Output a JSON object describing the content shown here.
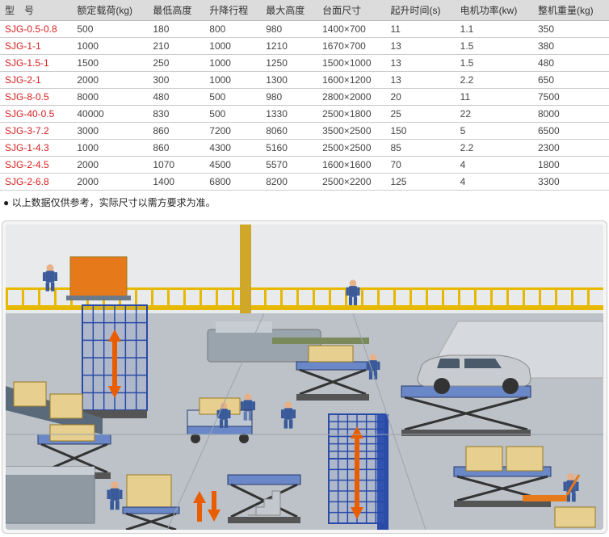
{
  "table": {
    "header_bg": "#dcdcdc",
    "row_border": "#cccccc",
    "model_color": "#d62020",
    "text_color": "#444444",
    "columns": [
      "型　号",
      "额定载荷(kg)",
      "最低高度",
      "升降行程",
      "最大高度",
      "台面尺寸",
      "起升时间(s)",
      "电机功率(kw)",
      "整机重量(kg)"
    ],
    "rows": [
      [
        "SJG-0.5-0.8",
        "500",
        "180",
        "800",
        "980",
        "1400×700",
        "11",
        "1.1",
        "350"
      ],
      [
        "SJG-1-1",
        "1000",
        "210",
        "1000",
        "1210",
        "1670×700",
        "13",
        "1.5",
        "380"
      ],
      [
        "SJG-1.5-1",
        "1500",
        "250",
        "1000",
        "1250",
        "1500×1000",
        "13",
        "1.5",
        "480"
      ],
      [
        "SJG-2-1",
        "2000",
        "300",
        "1000",
        "1300",
        "1600×1200",
        "13",
        "2.2",
        "650"
      ],
      [
        "SJG-8-0.5",
        "8000",
        "480",
        "500",
        "980",
        "2800×2000",
        "20",
        "11",
        "7500"
      ],
      [
        "SJG-40-0.5",
        "40000",
        "830",
        "500",
        "1330",
        "2500×1800",
        "25",
        "22",
        "8000"
      ],
      [
        "SJG-3-7.2",
        "3000",
        "860",
        "7200",
        "8060",
        "3500×2500",
        "150",
        "5",
        "6500"
      ],
      [
        "SJG-1-4.3",
        "1000",
        "860",
        "4300",
        "5160",
        "2500×2500",
        "85",
        "2.2",
        "2300"
      ],
      [
        "SJG-2-4.5",
        "2000",
        "1070",
        "4500",
        "5570",
        "1600×1600",
        "70",
        "4",
        "1800"
      ],
      [
        "SJG-2-6.8",
        "2000",
        "1400",
        "6800",
        "8200",
        "2500×2200",
        "125",
        "4",
        "3300"
      ]
    ]
  },
  "footnote": "● 以上数据仅供参考，实际尺寸以需方要求为准。",
  "illus": {
    "bg_upper": "#e8eaec",
    "bg_floor": "#bcc2c8",
    "rail_color": "#e6b800",
    "cage_blue": "#2a4aa8",
    "cage_fill": "#5b7fd6",
    "box_orange": "#e67a1a",
    "box_tan": "#e6cf8f",
    "lift_top": "#6a88c8",
    "scissor": "#333333",
    "arrow": "#e85d00",
    "worker_body": "#3a5a9a",
    "worker_skin": "#e8b088",
    "truck_gray": "#8f99a2",
    "car_body": "#c8ccd0",
    "machine_gray": "#9aa4ac"
  }
}
